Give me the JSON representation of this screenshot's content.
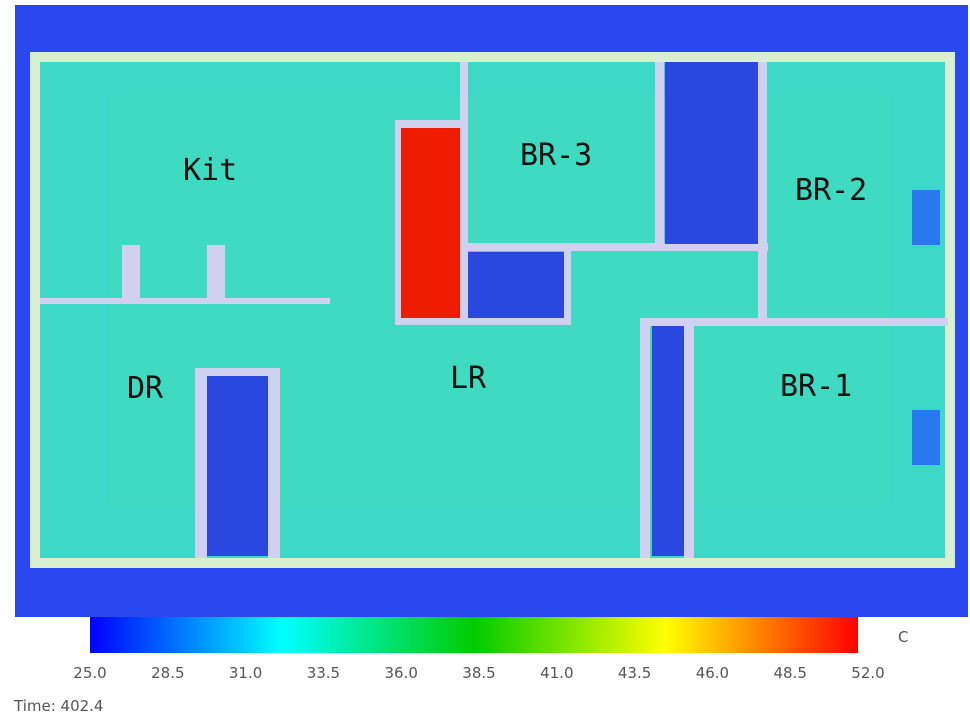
{
  "rooms": [
    "Kit",
    "BR-3",
    "BR-2",
    "DR",
    "LR",
    "BR-1"
  ],
  "colorbar": {
    "unit": "C",
    "labels": [
      "25.0",
      "28.5",
      "31.0",
      "33.5",
      "36.0",
      "38.5",
      "41.0",
      "43.5",
      "46.0",
      "48.5",
      "52.0"
    ]
  },
  "time": "Time: 402.4"
}
